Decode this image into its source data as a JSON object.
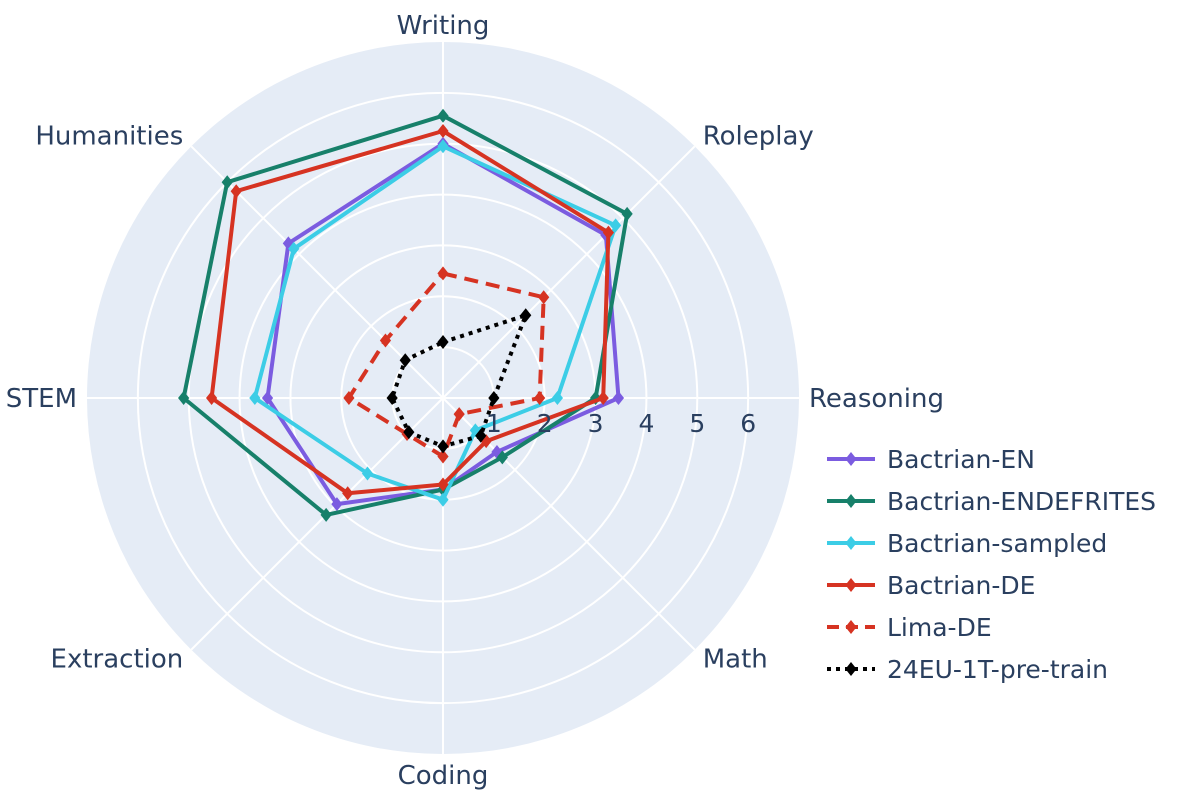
{
  "chart_data": {
    "type": "radar",
    "categories": [
      "Writing",
      "Roleplay",
      "Reasoning",
      "Math",
      "Coding",
      "Extraction",
      "STEM",
      "Humanities"
    ],
    "radial_ticks": [
      "1",
      "2",
      "3",
      "4",
      "5",
      "6"
    ],
    "radial_range": [
      0,
      7
    ],
    "grid": true,
    "legend_position": "right",
    "series": [
      {
        "name": "Bactrian-EN",
        "color": "#7b5ce0",
        "dash": "solid",
        "values": [
          5.0,
          4.53,
          3.45,
          1.5,
          1.8,
          2.95,
          3.45,
          4.3
        ]
      },
      {
        "name": "Bactrian-ENDEFRITES",
        "color": "#17806a",
        "dash": "solid",
        "values": [
          5.55,
          5.12,
          3.0,
          1.65,
          1.8,
          3.25,
          5.1,
          6.0
        ]
      },
      {
        "name": "Bactrian-sampled",
        "color": "#3ccde6",
        "dash": "solid",
        "values": [
          4.95,
          4.8,
          2.25,
          0.9,
          2.0,
          2.1,
          3.7,
          4.15
        ]
      },
      {
        "name": "Bactrian-DE",
        "color": "#d63322",
        "dash": "solid",
        "values": [
          5.25,
          4.6,
          3.15,
          1.2,
          1.7,
          2.65,
          4.55,
          5.75
        ]
      },
      {
        "name": "Lima-DE",
        "color": "#d63322",
        "dash": "dashed",
        "values": [
          2.45,
          2.8,
          1.9,
          0.45,
          1.15,
          1.0,
          1.85,
          1.6
        ]
      },
      {
        "name": "24EU-1T-pre-train",
        "color": "#000000",
        "dash": "dotted",
        "values": [
          1.1,
          2.3,
          1.0,
          1.05,
          0.95,
          0.95,
          1.0,
          1.05
        ]
      }
    ]
  }
}
